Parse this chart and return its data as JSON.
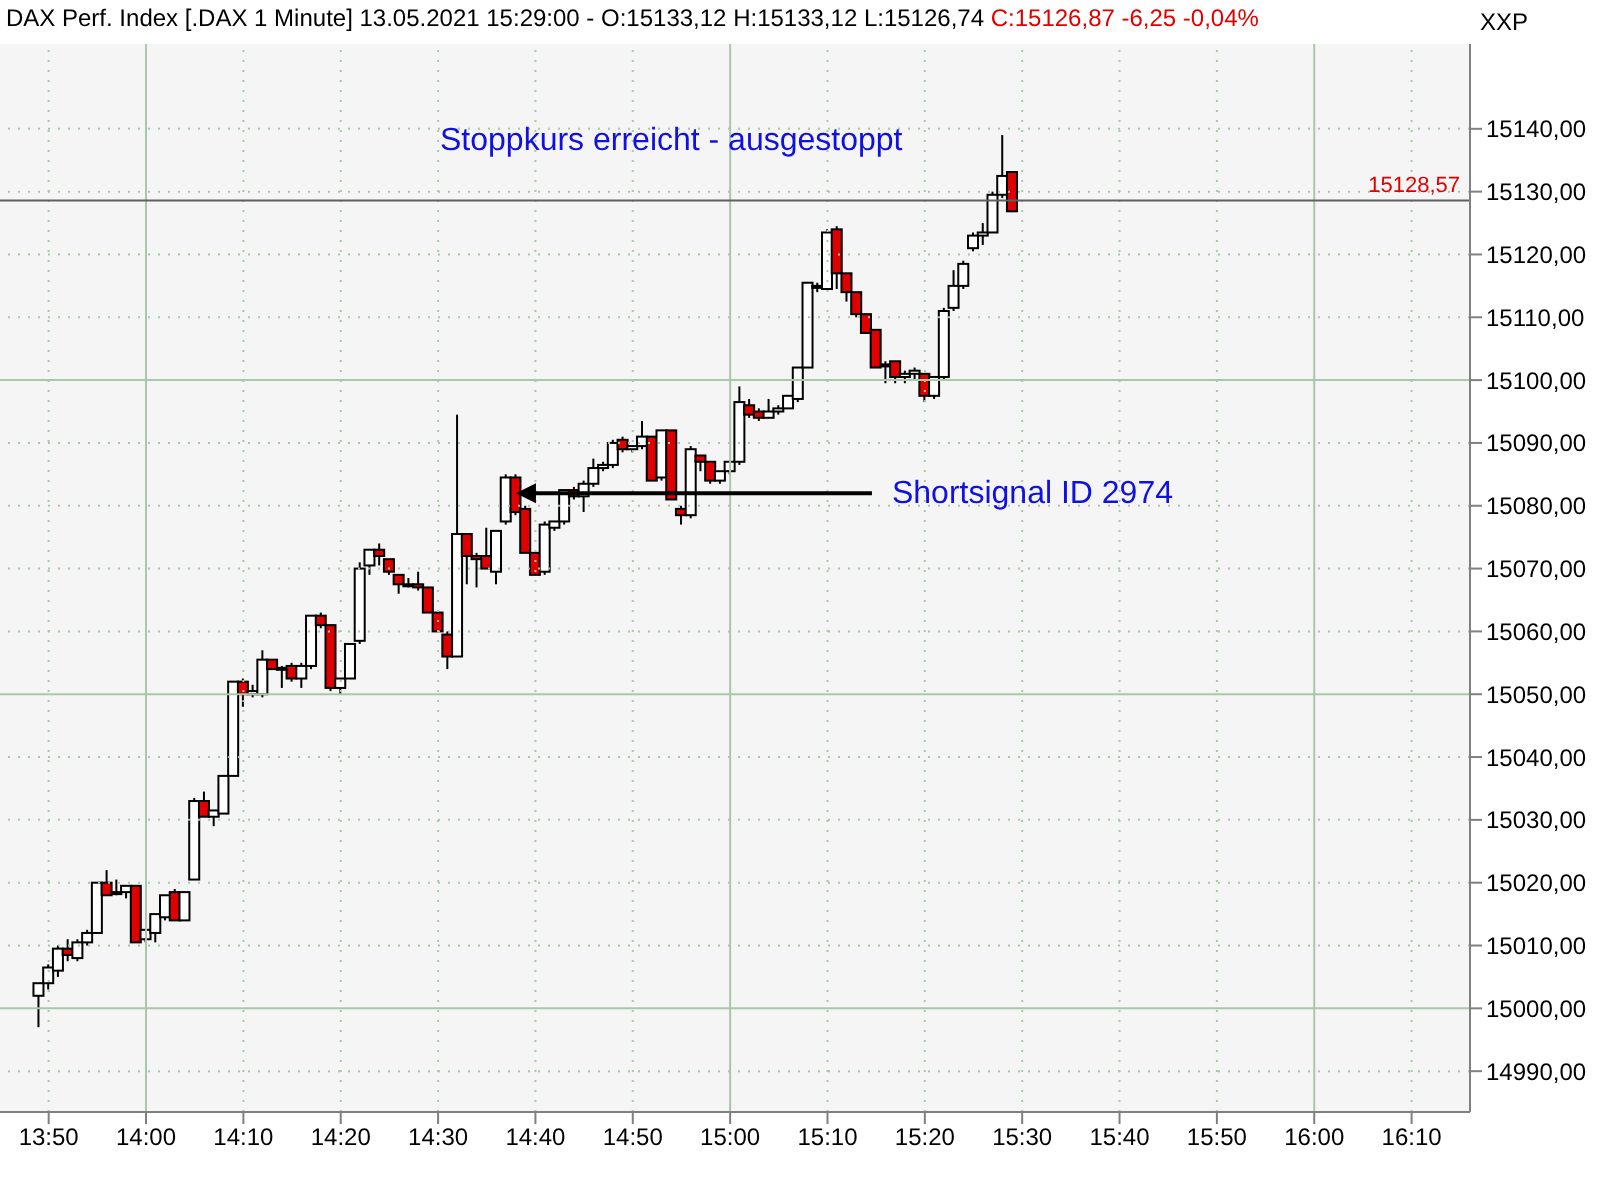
{
  "chart_data": {
    "type": "candlestick",
    "title": "DAX Perf. Index [.DAX  1 Minute] 13.05.2021 15:29:00 - O:15133,12 H:15133,12 L:15126,74",
    "subtitle": "C:15126,87 -6,25 -0,04%",
    "ylabel": "XXP",
    "annotations": [
      "Stoppkurs erreicht - ausgestoppt",
      {
        "text": "Shortsignal ID 2974",
        "x": "2021-05-13T14:38",
        "y": 15082
      }
    ],
    "x": [
      "2021-05-13T13:49",
      "2021-05-13T13:50",
      "2021-05-13T13:51",
      "2021-05-13T13:52",
      "2021-05-13T13:53",
      "2021-05-13T13:54",
      "2021-05-13T13:55",
      "2021-05-13T13:56",
      "2021-05-13T13:57",
      "2021-05-13T13:58",
      "2021-05-13T13:59",
      "2021-05-13T14:00",
      "2021-05-13T14:01",
      "2021-05-13T14:02",
      "2021-05-13T14:03",
      "2021-05-13T14:04",
      "2021-05-13T14:05",
      "2021-05-13T14:06",
      "2021-05-13T14:07",
      "2021-05-13T14:08",
      "2021-05-13T14:09",
      "2021-05-13T14:10",
      "2021-05-13T14:11",
      "2021-05-13T14:12",
      "2021-05-13T14:13",
      "2021-05-13T14:14",
      "2021-05-13T14:15",
      "2021-05-13T14:16",
      "2021-05-13T14:17",
      "2021-05-13T14:18",
      "2021-05-13T14:19",
      "2021-05-13T14:20",
      "2021-05-13T14:21",
      "2021-05-13T14:22",
      "2021-05-13T14:23",
      "2021-05-13T14:24",
      "2021-05-13T14:25",
      "2021-05-13T14:26",
      "2021-05-13T14:27",
      "2021-05-13T14:28",
      "2021-05-13T14:29",
      "2021-05-13T14:30",
      "2021-05-13T14:31",
      "2021-05-13T14:32",
      "2021-05-13T14:33",
      "2021-05-13T14:34",
      "2021-05-13T14:35",
      "2021-05-13T14:36",
      "2021-05-13T14:37",
      "2021-05-13T14:38",
      "2021-05-13T14:39",
      "2021-05-13T14:40",
      "2021-05-13T14:41",
      "2021-05-13T14:42",
      "2021-05-13T14:43",
      "2021-05-13T14:44",
      "2021-05-13T14:45",
      "2021-05-13T14:46",
      "2021-05-13T14:47",
      "2021-05-13T14:48",
      "2021-05-13T14:49",
      "2021-05-13T14:50",
      "2021-05-13T14:51",
      "2021-05-13T14:52",
      "2021-05-13T14:53",
      "2021-05-13T14:54",
      "2021-05-13T14:55",
      "2021-05-13T14:56",
      "2021-05-13T14:57",
      "2021-05-13T14:58",
      "2021-05-13T14:59",
      "2021-05-13T15:00",
      "2021-05-13T15:01",
      "2021-05-13T15:02",
      "2021-05-13T15:03",
      "2021-05-13T15:04",
      "2021-05-13T15:05",
      "2021-05-13T15:06",
      "2021-05-13T15:07",
      "2021-05-13T15:08",
      "2021-05-13T15:09",
      "2021-05-13T15:10",
      "2021-05-13T15:11",
      "2021-05-13T15:12",
      "2021-05-13T15:13",
      "2021-05-13T15:14",
      "2021-05-13T15:15",
      "2021-05-13T15:16",
      "2021-05-13T15:17",
      "2021-05-13T15:18",
      "2021-05-13T15:19",
      "2021-05-13T15:20",
      "2021-05-13T15:21",
      "2021-05-13T15:22",
      "2021-05-13T15:23",
      "2021-05-13T15:24",
      "2021-05-13T15:25",
      "2021-05-13T15:26",
      "2021-05-13T15:27",
      "2021-05-13T15:28",
      "2021-05-13T15:29"
    ],
    "ohlc": [
      [
        15002,
        15004,
        14997,
        15004
      ],
      [
        15004,
        15007,
        15003,
        15006.5
      ],
      [
        15006,
        15010,
        15005,
        15009.5
      ],
      [
        15009.5,
        15011,
        15007.5,
        15008.5
      ],
      [
        15008,
        15011,
        15007.5,
        15010.5
      ],
      [
        15010.5,
        15012.5,
        15010,
        15012
      ],
      [
        15012,
        15020,
        15012,
        15020
      ],
      [
        15020,
        15022,
        15018,
        15018
      ],
      [
        15018.5,
        15020.5,
        15018,
        15018.5
      ],
      [
        15018.5,
        15019.5,
        15017.5,
        15019.5
      ],
      [
        15019.5,
        15019.5,
        15010.5,
        15010.5
      ],
      [
        15011,
        15012.5,
        15010.5,
        15012.5
      ],
      [
        15012,
        15015,
        15010.5,
        15015
      ],
      [
        15014.5,
        15018,
        15014,
        15018
      ],
      [
        15018.5,
        15019,
        15014,
        15014
      ],
      [
        15014,
        15018.5,
        15014,
        15018.5
      ],
      [
        15020.5,
        15033.5,
        15020.5,
        15033
      ],
      [
        15033,
        15034.5,
        15030.5,
        15030.5
      ],
      [
        15030.5,
        15031.5,
        15029,
        15031.5
      ],
      [
        15031,
        15037,
        15031,
        15037
      ],
      [
        15037,
        15052,
        15037,
        15052
      ],
      [
        15052,
        15052.5,
        15048,
        15050
      ],
      [
        15050,
        15051.5,
        15049.5,
        15050.5
      ],
      [
        15050,
        15057,
        15049.5,
        15055.5
      ],
      [
        15055.5,
        15055.5,
        15054,
        15054
      ],
      [
        15054,
        15054.5,
        15051,
        15054.2
      ],
      [
        15054.5,
        15055,
        15052,
        15052.5
      ],
      [
        15052.5,
        15055,
        15051,
        15054.5
      ],
      [
        15054.5,
        15062.5,
        15054,
        15062.5
      ],
      [
        15062.5,
        15063,
        15060.5,
        15061
      ],
      [
        15061,
        15061,
        15050.5,
        15051
      ],
      [
        15051,
        15052.5,
        15050,
        15052.5
      ],
      [
        15052.5,
        15058,
        15052.5,
        15058
      ],
      [
        15058.5,
        15071,
        15058,
        15070
      ],
      [
        15070.5,
        15073,
        15069,
        15073
      ],
      [
        15073,
        15074,
        15070.5,
        15072
      ],
      [
        15071.5,
        15071.5,
        15069,
        15069.5
      ],
      [
        15069,
        15069,
        15066,
        15067.5
      ],
      [
        15067.5,
        15068.5,
        15067,
        15067.5
      ],
      [
        15067.5,
        15069.5,
        15066.5,
        15067
      ],
      [
        15067,
        15067,
        15063,
        15063
      ],
      [
        15063,
        15063,
        15060,
        15060
      ],
      [
        15059.5,
        15060,
        15054,
        15056
      ],
      [
        15056,
        15094.5,
        15056,
        15075.5
      ],
      [
        15075.5,
        15075.5,
        15067.5,
        15072
      ],
      [
        15072,
        15072.5,
        15067,
        15071.5
      ],
      [
        15072,
        15076.5,
        15070,
        15070
      ],
      [
        15069.5,
        15076,
        15067.5,
        15076
      ],
      [
        15077.5,
        15085,
        15077,
        15084.5
      ],
      [
        15084.5,
        15085,
        15078.5,
        15079
      ],
      [
        15079.5,
        15080,
        15072.5,
        15072.5
      ],
      [
        15072.5,
        15072.5,
        15069,
        15069
      ],
      [
        15069.5,
        15077.5,
        15069,
        15077
      ],
      [
        15076.5,
        15077.5,
        15076,
        15077.5
      ],
      [
        15077.5,
        15082.5,
        15077,
        15082.5
      ],
      [
        15082.5,
        15083,
        15081,
        15081.5
      ],
      [
        15081.5,
        15084,
        15079,
        15083.5
      ],
      [
        15083.5,
        15087.5,
        15083,
        15086
      ],
      [
        15086,
        15087,
        15085.5,
        15086.5
      ],
      [
        15086.5,
        15090.5,
        15086,
        15090
      ],
      [
        15090.5,
        15091,
        15088.5,
        15089
      ],
      [
        15089,
        15089.5,
        15088.5,
        15089.5
      ],
      [
        15089.5,
        15093.5,
        15089,
        15091
      ],
      [
        15091,
        15091,
        15084,
        15084
      ],
      [
        15084.5,
        15092,
        15084,
        15092
      ],
      [
        15092,
        15092,
        15081,
        15081
      ],
      [
        15079.5,
        15080,
        15077,
        15078.5
      ],
      [
        15078.5,
        15089.5,
        15078,
        15089
      ],
      [
        15088,
        15088,
        15085.5,
        15087
      ],
      [
        15087,
        15087,
        15083.5,
        15084
      ],
      [
        15084,
        15085.5,
        15083.5,
        15085.5
      ],
      [
        15085.5,
        15087,
        15085,
        15087
      ],
      [
        15087,
        15099,
        15086.5,
        15096.5
      ],
      [
        15096,
        15097,
        15094,
        15094.5
      ],
      [
        15095,
        15095.5,
        15093.5,
        15094
      ],
      [
        15094,
        15097,
        15094,
        15095
      ],
      [
        15095,
        15096,
        15094.5,
        15095.5
      ],
      [
        15095.5,
        15097.5,
        15095.5,
        15097.5
      ],
      [
        15097,
        15102,
        15096.5,
        15102
      ],
      [
        15102,
        15115.5,
        15102,
        15115.5
      ],
      [
        15115,
        15115.5,
        15114,
        15115
      ],
      [
        15114.5,
        15124,
        15114.5,
        15123.5
      ],
      [
        15124,
        15124.5,
        15114.5,
        15117
      ],
      [
        15117,
        15117,
        15112.5,
        15114
      ],
      [
        15114,
        15114,
        15110,
        15110.5
      ],
      [
        15110.5,
        15110.5,
        15107.5,
        15107.5
      ],
      [
        15108,
        15108,
        15102,
        15102
      ],
      [
        15102.5,
        15103,
        15099.5,
        15102.5
      ],
      [
        15103,
        15103,
        15099.5,
        15100.5
      ],
      [
        15100.5,
        15101.5,
        15099.5,
        15101
      ],
      [
        15101,
        15102,
        15100,
        15101.5
      ],
      [
        15101,
        15101,
        15096.5,
        15097.5
      ],
      [
        15097.5,
        15100.5,
        15097,
        15100.5
      ],
      [
        15100.5,
        15111.5,
        15100,
        15111
      ],
      [
        15111.5,
        15117.5,
        15111,
        15115
      ],
      [
        15115,
        15119,
        15114.5,
        15118.5
      ],
      [
        15121,
        15123.5,
        15120.5,
        15123
      ],
      [
        15123,
        15125,
        15121.5,
        15123.5
      ],
      [
        15123.5,
        15130,
        15123.5,
        15129.5
      ],
      [
        15129.5,
        15139,
        15129,
        15132.5
      ],
      [
        15133.12,
        15133.12,
        15126.74,
        15126.87
      ]
    ],
    "xlim": [
      "2021-05-13T13:45",
      "2021-05-13T16:16"
    ],
    "xticks": [
      {
        "value": "2021-05-13T13:50",
        "label": "13:50"
      },
      {
        "value": "2021-05-13T14:00",
        "label": "14:00"
      },
      {
        "value": "2021-05-13T14:10",
        "label": "14:10"
      },
      {
        "value": "2021-05-13T14:20",
        "label": "14:20"
      },
      {
        "value": "2021-05-13T14:30",
        "label": "14:30"
      },
      {
        "value": "2021-05-13T14:40",
        "label": "14:40"
      },
      {
        "value": "2021-05-13T14:50",
        "label": "14:50"
      },
      {
        "value": "2021-05-13T15:00",
        "label": "15:00"
      },
      {
        "value": "2021-05-13T15:10",
        "label": "15:10"
      },
      {
        "value": "2021-05-13T15:20",
        "label": "15:20"
      },
      {
        "value": "2021-05-13T15:30",
        "label": "15:30"
      },
      {
        "value": "2021-05-13T15:40",
        "label": "15:40"
      },
      {
        "value": "2021-05-13T15:50",
        "label": "15:50"
      },
      {
        "value": "2021-05-13T16:00",
        "label": "16:00"
      },
      {
        "value": "2021-05-13T16:10",
        "label": "16:10"
      }
    ],
    "ylim": [
      14983.5,
      15153.5
    ],
    "yticks": [
      {
        "value": 14990,
        "label": "14990,00"
      },
      {
        "value": 15000,
        "label": "15000,00"
      },
      {
        "value": 15010,
        "label": "15010,00"
      },
      {
        "value": 15020,
        "label": "15020,00"
      },
      {
        "value": 15030,
        "label": "15030,00"
      },
      {
        "value": 15040,
        "label": "15040,00"
      },
      {
        "value": 15050,
        "label": "15050,00"
      },
      {
        "value": 15060,
        "label": "15060,00"
      },
      {
        "value": 15070,
        "label": "15070,00"
      },
      {
        "value": 15080,
        "label": "15080,00"
      },
      {
        "value": 15090,
        "label": "15090,00"
      },
      {
        "value": 15100,
        "label": "15100,00"
      },
      {
        "value": 15110,
        "label": "15110,00"
      },
      {
        "value": 15120,
        "label": "15120,00"
      },
      {
        "value": 15130,
        "label": "15130,00"
      },
      {
        "value": 15140,
        "label": "15140,00"
      }
    ],
    "ref_lines": [
      {
        "axis": "y",
        "value": 15128.57,
        "label": "15128,57",
        "color": "#606060"
      }
    ],
    "grid": true
  }
}
